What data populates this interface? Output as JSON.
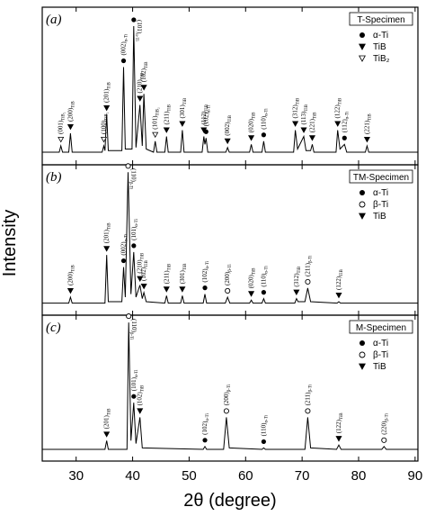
{
  "chart_data": [
    {
      "type": "line",
      "panel_label": "(a)",
      "specimen": "T-Specimen",
      "color": "#000000",
      "xlim": [
        24,
        90.5
      ],
      "ylim": [
        0,
        100
      ],
      "x": [
        24,
        27.0,
        27.3,
        27.6,
        28.7,
        29.0,
        29.3,
        34.6,
        34.9,
        35.1,
        35.4,
        35.7,
        38.1,
        38.4,
        38.7,
        39.9,
        40.2,
        40.6,
        41.3,
        41.7,
        42.0,
        42.4,
        43.7,
        44.0,
        44.3,
        45.7,
        46.0,
        46.3,
        48.5,
        48.8,
        49.1,
        52.3,
        52.6,
        52.8,
        53.0,
        53.3,
        56.5,
        56.8,
        57.1,
        60.7,
        61.0,
        61.3,
        62.9,
        63.2,
        63.5,
        68.5,
        68.8,
        69.2,
        70.3,
        70.7,
        71.5,
        71.8,
        72.1,
        76.0,
        76.3,
        76.7,
        77.5,
        77.9,
        81.2,
        81.5,
        81.8,
        90.5
      ],
      "values": [
        8,
        8,
        12,
        8,
        8,
        20,
        8,
        8,
        12,
        9,
        32,
        9,
        9,
        62,
        10,
        10,
        88,
        11,
        38,
        12,
        45,
        10,
        8,
        15,
        8,
        8,
        18,
        8,
        8,
        22,
        8,
        8,
        18,
        13,
        17,
        8,
        8,
        11,
        8,
        8,
        13,
        8,
        8,
        15,
        8,
        8,
        22,
        10,
        18,
        9,
        9,
        13,
        8,
        8,
        22,
        10,
        13,
        8,
        8,
        12,
        8,
        8
      ],
      "legend": [
        {
          "marker": "alpha",
          "label": "α-Ti"
        },
        {
          "marker": "tib",
          "label": "TiB"
        },
        {
          "marker": "tib2",
          "label": "TiB₂"
        }
      ],
      "annotations": [
        {
          "x": 27.3,
          "hkl": "(001)",
          "phase": "TiB₂",
          "marker": "tib2"
        },
        {
          "x": 29.0,
          "hkl": "(200)",
          "phase": "TiB",
          "marker": "tib"
        },
        {
          "x": 34.9,
          "hkl": "(100)",
          "phase": "TiB₂",
          "marker": "tib2"
        },
        {
          "x": 35.4,
          "hkl": "(201)",
          "phase": "TiB",
          "marker": "tib"
        },
        {
          "x": 38.4,
          "hkl": "(002)",
          "phase": "α-Ti",
          "marker": "alpha"
        },
        {
          "x": 40.2,
          "hkl": "(101)",
          "phase": "α-Ti",
          "marker": "alpha"
        },
        {
          "x": 41.3,
          "hkl": "(210)",
          "phase": "TiB",
          "marker": "tib"
        },
        {
          "x": 42.0,
          "hkl": "(102)",
          "phase": "TiB",
          "marker": "tib"
        },
        {
          "x": 44.0,
          "hkl": "(101)",
          "phase": "TiB₂",
          "marker": "tib2"
        },
        {
          "x": 46.0,
          "hkl": "(211)",
          "phase": "TiB",
          "marker": "tib"
        },
        {
          "x": 48.8,
          "hkl": "(301)",
          "phase": "TiB",
          "marker": "tib"
        },
        {
          "x": 52.6,
          "hkl": "(112)",
          "phase": "TiB",
          "marker": "tib"
        },
        {
          "x": 53.0,
          "hkl": "(102)",
          "phase": "α-Ti",
          "marker": "alpha"
        },
        {
          "x": 56.8,
          "hkl": "(002)",
          "phase": "TiB",
          "marker": "tib"
        },
        {
          "x": 61.0,
          "hkl": "(020)",
          "phase": "TiB",
          "marker": "tib"
        },
        {
          "x": 63.2,
          "hkl": "(110)",
          "phase": "α-Ti",
          "marker": "alpha"
        },
        {
          "x": 68.8,
          "hkl": "(312)",
          "phase": "TiB",
          "marker": "tib"
        },
        {
          "x": 70.3,
          "hkl": "(113)",
          "phase": "TiB",
          "marker": "tib"
        },
        {
          "x": 71.8,
          "hkl": "(221)",
          "phase": "TiB",
          "marker": "tib"
        },
        {
          "x": 76.3,
          "hkl": "(122)",
          "phase": "TiB",
          "marker": "tib"
        },
        {
          "x": 77.5,
          "hkl": "(112)",
          "phase": "α-Ti",
          "marker": "alpha"
        },
        {
          "x": 81.5,
          "hkl": "(221)",
          "phase": "TiB",
          "marker": "tib"
        }
      ]
    },
    {
      "type": "line",
      "panel_label": "(b)",
      "specimen": "TM-Specimen",
      "color": "#000000",
      "xlim": [
        24,
        90.5
      ],
      "ylim": [
        0,
        100
      ],
      "y_label": "Intensity",
      "x": [
        24,
        28.7,
        29.0,
        29.3,
        35.1,
        35.4,
        35.7,
        38.1,
        38.4,
        38.7,
        39.2,
        39.7,
        40.2,
        40.6,
        41.3,
        41.7,
        42.0,
        42.4,
        45.7,
        46.0,
        46.3,
        48.5,
        48.8,
        49.1,
        52.5,
        52.8,
        53.1,
        56.4,
        56.8,
        57.2,
        60.7,
        61.0,
        61.3,
        62.9,
        63.2,
        63.5,
        68.7,
        69.0,
        69.3,
        70.5,
        71.0,
        71.5,
        76.2,
        76.5,
        76.8,
        90.5
      ],
      "values": [
        8,
        8,
        12,
        8,
        8,
        40,
        9,
        9,
        32,
        12,
        95,
        14,
        42,
        12,
        20,
        11,
        15,
        9,
        8,
        13,
        8,
        8,
        13,
        8,
        8,
        14,
        8,
        8,
        12,
        8,
        8,
        10,
        8,
        8,
        11,
        8,
        8,
        11,
        9,
        9,
        18,
        9,
        8,
        9,
        8,
        8
      ],
      "legend": [
        {
          "marker": "alpha",
          "label": "α-Ti"
        },
        {
          "marker": "beta",
          "label": "β-Ti"
        },
        {
          "marker": "tib",
          "label": "TiB"
        }
      ],
      "annotations": [
        {
          "x": 29.0,
          "hkl": "(200)",
          "phase": "TiB",
          "marker": "tib"
        },
        {
          "x": 35.4,
          "hkl": "(201)",
          "phase": "TiB",
          "marker": "tib"
        },
        {
          "x": 38.4,
          "hkl": "(002)",
          "phase": "α-Ti",
          "marker": "alpha"
        },
        {
          "x": 39.2,
          "hkl": "(110)",
          "phase": "β-Ti",
          "marker": "beta"
        },
        {
          "x": 40.2,
          "hkl": "(101)",
          "phase": "α-Ti",
          "marker": "alpha"
        },
        {
          "x": 41.3,
          "hkl": "(210)",
          "phase": "TiB",
          "marker": "tib"
        },
        {
          "x": 42.0,
          "hkl": "(102)",
          "phase": "TiB",
          "marker": "tib"
        },
        {
          "x": 46.0,
          "hkl": "(211)",
          "phase": "TiB",
          "marker": "tib"
        },
        {
          "x": 48.8,
          "hkl": "(301)",
          "phase": "TiB",
          "marker": "tib"
        },
        {
          "x": 52.8,
          "hkl": "(102)",
          "phase": "α-Ti",
          "marker": "alpha"
        },
        {
          "x": 56.8,
          "hkl": "(200)",
          "phase": "β-Ti",
          "marker": "beta"
        },
        {
          "x": 61.0,
          "hkl": "(020)",
          "phase": "TiB",
          "marker": "tib"
        },
        {
          "x": 63.2,
          "hkl": "(110)",
          "phase": "α-Ti",
          "marker": "alpha"
        },
        {
          "x": 69.0,
          "hkl": "(312)",
          "phase": "TiB",
          "marker": "tib"
        },
        {
          "x": 71.0,
          "hkl": "(211)",
          "phase": "β-Ti",
          "marker": "beta"
        },
        {
          "x": 76.5,
          "hkl": "(122)",
          "phase": "TiB",
          "marker": "tib"
        }
      ]
    },
    {
      "type": "line",
      "panel_label": "(c)",
      "specimen": "M-Specimen",
      "color": "#000000",
      "xlim": [
        24,
        90.5
      ],
      "ylim": [
        0,
        100
      ],
      "x_label": "2θ (degree)",
      "xticks": [
        30,
        40,
        50,
        60,
        70,
        80,
        90
      ],
      "x": [
        24,
        35.1,
        35.4,
        35.7,
        39.0,
        39.3,
        39.7,
        40.2,
        40.6,
        41.3,
        41.7,
        52.5,
        52.8,
        53.1,
        56.1,
        56.6,
        57.1,
        62.9,
        63.2,
        63.5,
        70.5,
        71.0,
        71.5,
        76.1,
        76.5,
        76.9,
        84.1,
        84.5,
        84.9,
        90.5
      ],
      "values": [
        8,
        8,
        14,
        8,
        8,
        95,
        14,
        40,
        12,
        30,
        9,
        8,
        10,
        8,
        8,
        30,
        9,
        8,
        9,
        8,
        8,
        30,
        9,
        8,
        11,
        8,
        8,
        10,
        8,
        8
      ],
      "legend": [
        {
          "marker": "alpha",
          "label": "α-Ti"
        },
        {
          "marker": "beta",
          "label": "β-Ti"
        },
        {
          "marker": "tib",
          "label": "TiB"
        }
      ],
      "annotations": [
        {
          "x": 35.4,
          "hkl": "(201)",
          "phase": "TiB",
          "marker": "tib"
        },
        {
          "x": 39.3,
          "hkl": "(110)",
          "phase": "β-Ti",
          "marker": "beta"
        },
        {
          "x": 40.2,
          "hkl": "(101)",
          "phase": "α-Ti",
          "marker": "alpha"
        },
        {
          "x": 41.3,
          "hkl": "(102)",
          "phase": "TiB",
          "marker": "tib"
        },
        {
          "x": 52.8,
          "hkl": "(102)",
          "phase": "α-Ti",
          "marker": "alpha"
        },
        {
          "x": 56.6,
          "hkl": "(200)",
          "phase": "β-Ti",
          "marker": "beta"
        },
        {
          "x": 63.2,
          "hkl": "(110)",
          "phase": "α-Ti",
          "marker": "alpha"
        },
        {
          "x": 71.0,
          "hkl": "(211)",
          "phase": "β-Ti",
          "marker": "beta"
        },
        {
          "x": 76.5,
          "hkl": "(122)",
          "phase": "TiB",
          "marker": "tib"
        },
        {
          "x": 84.5,
          "hkl": "(220)",
          "phase": "β-Ti",
          "marker": "beta"
        }
      ]
    }
  ]
}
